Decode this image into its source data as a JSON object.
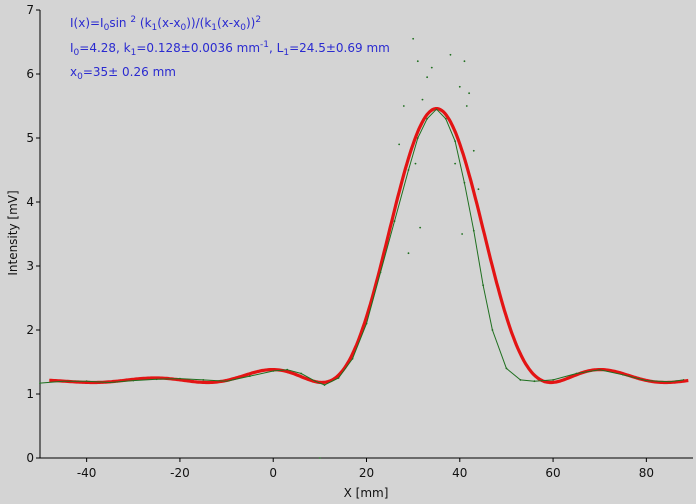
{
  "chart_data": {
    "type": "scatter",
    "xlabel": "X [mm]",
    "ylabel": "Intensity [mV]",
    "xlim": [
      -50,
      90
    ],
    "ylim": [
      0,
      7
    ],
    "xticks": [
      -40,
      -20,
      0,
      20,
      40,
      60,
      80
    ],
    "yticks": [
      0,
      1,
      2,
      3,
      4,
      5,
      6,
      7
    ],
    "grid": false,
    "annotations": [
      "I(x)=I0sin 2 (k1(x-x0))/(k1(x-x0))2",
      "I0=4.28,  k1=0.128±0.0036 mm-1,   L1=24.5±0.69 mm",
      "x0=35±  0.26 mm"
    ],
    "fit_params": {
      "I0": 4.28,
      "k1": 0.128,
      "x0": 35,
      "baseline": 1.18
    },
    "series": [
      {
        "role": "measured",
        "color": "#1f6f1f",
        "x": [
          -50,
          -45,
          -40,
          -35,
          -30,
          -25,
          -20,
          -15,
          -10,
          -5,
          0,
          3,
          6,
          9,
          11,
          14,
          17,
          20,
          23,
          26,
          29,
          31,
          33,
          35,
          37,
          39,
          41,
          43,
          45,
          47,
          50,
          53,
          56,
          60,
          65,
          70,
          75,
          80,
          85,
          88
        ],
        "y": [
          1.17,
          1.2,
          1.2,
          1.18,
          1.21,
          1.23,
          1.24,
          1.22,
          1.2,
          1.28,
          1.36,
          1.38,
          1.32,
          1.2,
          1.14,
          1.25,
          1.55,
          2.1,
          2.9,
          3.7,
          4.5,
          5.0,
          5.3,
          5.45,
          5.3,
          4.95,
          4.3,
          3.55,
          2.7,
          2.0,
          1.4,
          1.22,
          1.2,
          1.22,
          1.32,
          1.38,
          1.3,
          1.21,
          1.19,
          1.22
        ]
      },
      {
        "role": "outliers",
        "color": "#1f6f1f",
        "x": [
          27,
          28,
          29,
          30,
          30.5,
          31,
          31.5,
          32,
          33,
          34,
          38,
          39,
          40,
          40.5,
          41,
          41.5,
          42,
          43,
          44,
          10
        ],
        "y": [
          4.9,
          5.5,
          3.2,
          6.55,
          4.6,
          6.2,
          3.6,
          5.6,
          5.95,
          6.1,
          6.3,
          4.6,
          5.8,
          3.5,
          6.2,
          5.5,
          5.7,
          4.8,
          4.2,
          0.0
        ]
      },
      {
        "role": "fit",
        "color": "#e31414",
        "x_range": [
          -48,
          89
        ]
      }
    ]
  }
}
